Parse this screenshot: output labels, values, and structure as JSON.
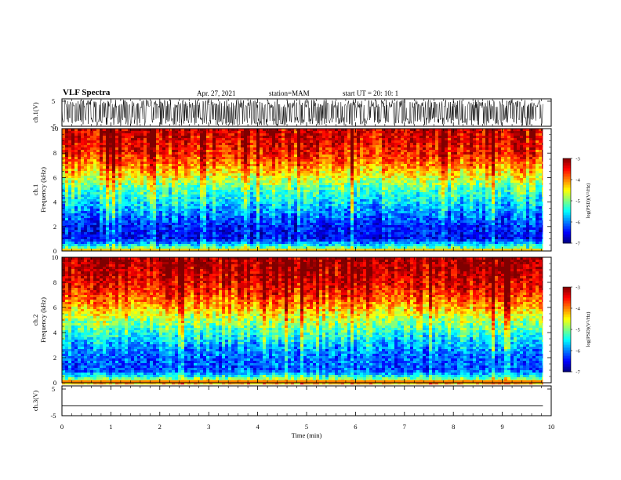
{
  "header": {
    "title": "VLF Spectra",
    "date": "Apr. 27, 2021",
    "station": "station=MAM",
    "start": "start UT =   20: 10: 1"
  },
  "colors": {
    "colormap": [
      "#00007f",
      "#0000ff",
      "#007fff",
      "#00ffff",
      "#7fff7f",
      "#ffff00",
      "#ff7f00",
      "#ff0000",
      "#7f0000"
    ]
  },
  "chart_data": [
    {
      "id": "ch1-waveform",
      "type": "line",
      "ylabel": "ch.1(V)",
      "ylim": [
        -5,
        5
      ],
      "yticks": [
        "5",
        "-5"
      ],
      "xlim": [
        0,
        10
      ],
      "note": "dense oscillating trace"
    },
    {
      "id": "ch1-spectrogram",
      "type": "heatmap",
      "ylabel_line1": "ch.1",
      "ylabel_line2": "Frequency (kHz)",
      "ylim": [
        0,
        10
      ],
      "yticks": [
        "0",
        "2",
        "4",
        "6",
        "8",
        "10"
      ],
      "xlim": [
        0,
        9.83
      ],
      "colorbar": {
        "label": "log(PSD)(V²/Hz)",
        "range": [
          -7,
          -3
        ],
        "ticks": [
          "-3",
          "-4",
          "-5",
          "-6",
          "-7"
        ]
      },
      "profile": {
        "freq_khz": [
          0,
          0.5,
          1,
          2,
          3,
          4,
          5,
          6,
          7,
          8,
          9,
          10
        ],
        "log_psd": [
          -4.6,
          -5.6,
          -6.5,
          -6.4,
          -6.0,
          -5.6,
          -5.2,
          -4.6,
          -4.0,
          -3.6,
          -3.4,
          -3.3
        ]
      }
    },
    {
      "id": "ch2-spectrogram",
      "type": "heatmap",
      "ylabel_line1": "ch.2",
      "ylabel_line2": "Frequency (kHz)",
      "ylim": [
        0,
        10
      ],
      "yticks": [
        "0",
        "2",
        "4",
        "6",
        "8",
        "10"
      ],
      "xlim": [
        0,
        9.83
      ],
      "colorbar": {
        "label": "log(PSD)(V²/Hz)",
        "range": [
          -7,
          -3
        ],
        "ticks": [
          "-3",
          "-4",
          "-5",
          "-6",
          "-7"
        ]
      },
      "profile": {
        "freq_khz": [
          0,
          0.5,
          1,
          2,
          3,
          4,
          5,
          6,
          7,
          8,
          9,
          10
        ],
        "log_psd": [
          -4.3,
          -5.4,
          -6.2,
          -6.1,
          -5.8,
          -5.3,
          -4.8,
          -4.2,
          -3.7,
          -3.4,
          -3.2,
          -3.1
        ]
      }
    },
    {
      "id": "ch3-waveform",
      "type": "line",
      "ylabel": "ch.3(V)",
      "ylim": [
        -5,
        5
      ],
      "yticks": [
        "5",
        "-5"
      ],
      "constant_value": -1.7,
      "xlim": [
        0,
        10
      ]
    }
  ],
  "xaxis": {
    "label": "Time (min)",
    "range": [
      0,
      10
    ],
    "ticks": [
      "0",
      "1",
      "2",
      "3",
      "4",
      "5",
      "6",
      "7",
      "8",
      "9",
      "10"
    ]
  }
}
